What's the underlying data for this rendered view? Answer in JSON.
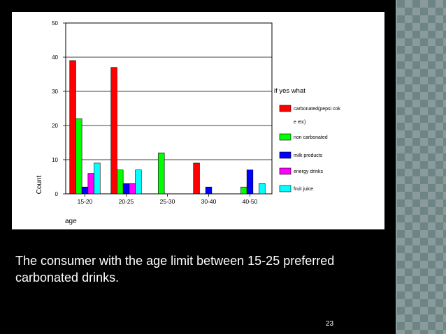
{
  "chart_data": {
    "type": "bar",
    "categories": [
      "15-20",
      "20-25",
      "25-30",
      "30-40",
      "40-50"
    ],
    "series": [
      {
        "name": "carbonated(pepsi coke etc)",
        "color": "#ff0000",
        "values": [
          39,
          37,
          0,
          9,
          0
        ]
      },
      {
        "name": "non carbonated",
        "color": "#00ff00",
        "values": [
          22,
          7,
          12,
          0,
          2
        ]
      },
      {
        "name": "milk products",
        "color": "#0000ff",
        "values": [
          2,
          3,
          0,
          2,
          7
        ]
      },
      {
        "name": "energy drinks",
        "color": "#ff00ff",
        "values": [
          6,
          3,
          0,
          0,
          0
        ]
      },
      {
        "name": "fruit juice",
        "color": "#00ffff",
        "values": [
          9,
          7,
          0,
          0,
          3
        ]
      }
    ],
    "yticks": [
      0,
      10,
      20,
      30,
      40,
      50
    ],
    "ylim": [
      0,
      50
    ],
    "xlabel": "age",
    "ylabel": "Count",
    "legend_title": "if yes what",
    "legend_placement": "right",
    "grid": true
  },
  "caption": "The consumer with the age limit between 15-25 preferred carbonated drinks.",
  "page_number": "23"
}
